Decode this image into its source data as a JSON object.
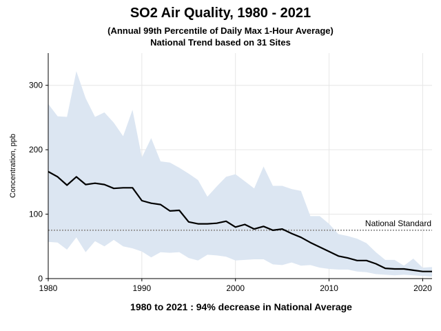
{
  "header": {
    "title": "SO2 Air Quality, 1980 - 2021",
    "subtitle1": "(Annual 99th Percentile of Daily Max 1-Hour Average)",
    "subtitle2": "National Trend based on 31 Sites"
  },
  "footer": {
    "text": "1980 to 2021 :  94% decrease in National Average"
  },
  "colors": {
    "band": "#dce6f2",
    "line": "#000000",
    "standard": "#999999",
    "grid": "#e6e6e6"
  },
  "chart_data": {
    "type": "line",
    "ylabel": "Concentration, ppb",
    "xlabel": "",
    "xlim": [
      1980,
      2021
    ],
    "ylim": [
      0,
      350
    ],
    "x_ticks": [
      1980,
      1990,
      2000,
      2010,
      2020
    ],
    "y_ticks": [
      0,
      100,
      200,
      300
    ],
    "grid": true,
    "reference_line": {
      "label": "National Standard",
      "value": 75
    },
    "x": [
      1980,
      1981,
      1982,
      1983,
      1984,
      1985,
      1986,
      1987,
      1988,
      1989,
      1990,
      1991,
      1992,
      1993,
      1994,
      1995,
      1996,
      1997,
      1998,
      1999,
      2000,
      2001,
      2002,
      2003,
      2004,
      2005,
      2006,
      2007,
      2008,
      2009,
      2010,
      2011,
      2012,
      2013,
      2014,
      2015,
      2016,
      2017,
      2018,
      2019,
      2020,
      2021
    ],
    "series": [
      {
        "values": [
          166,
          158,
          145,
          158,
          146,
          148,
          146,
          140,
          141,
          141,
          121,
          117,
          115,
          105,
          106,
          88,
          85,
          85,
          86,
          89,
          80,
          84,
          77,
          81,
          75,
          77,
          70,
          64,
          56,
          49,
          42,
          35,
          32,
          28,
          28,
          23,
          16,
          15,
          15,
          13,
          11,
          11
        ]
      }
    ],
    "band_upper": [
      271,
      252,
      251,
      322,
      280,
      251,
      258,
      242,
      221,
      262,
      188,
      218,
      182,
      180,
      172,
      163,
      153,
      127,
      143,
      158,
      162,
      151,
      140,
      174,
      144,
      144,
      139,
      136,
      97,
      97,
      85,
      69,
      66,
      62,
      55,
      41,
      29,
      29,
      20,
      31,
      17,
      18
    ],
    "band_lower": [
      57,
      56,
      45,
      64,
      41,
      58,
      50,
      60,
      50,
      47,
      42,
      33,
      41,
      40,
      41,
      32,
      28,
      37,
      36,
      34,
      28,
      29,
      30,
      30,
      22,
      21,
      25,
      20,
      21,
      17,
      15,
      14,
      14,
      11,
      10,
      7,
      6,
      5,
      6,
      5,
      4,
      3
    ]
  }
}
